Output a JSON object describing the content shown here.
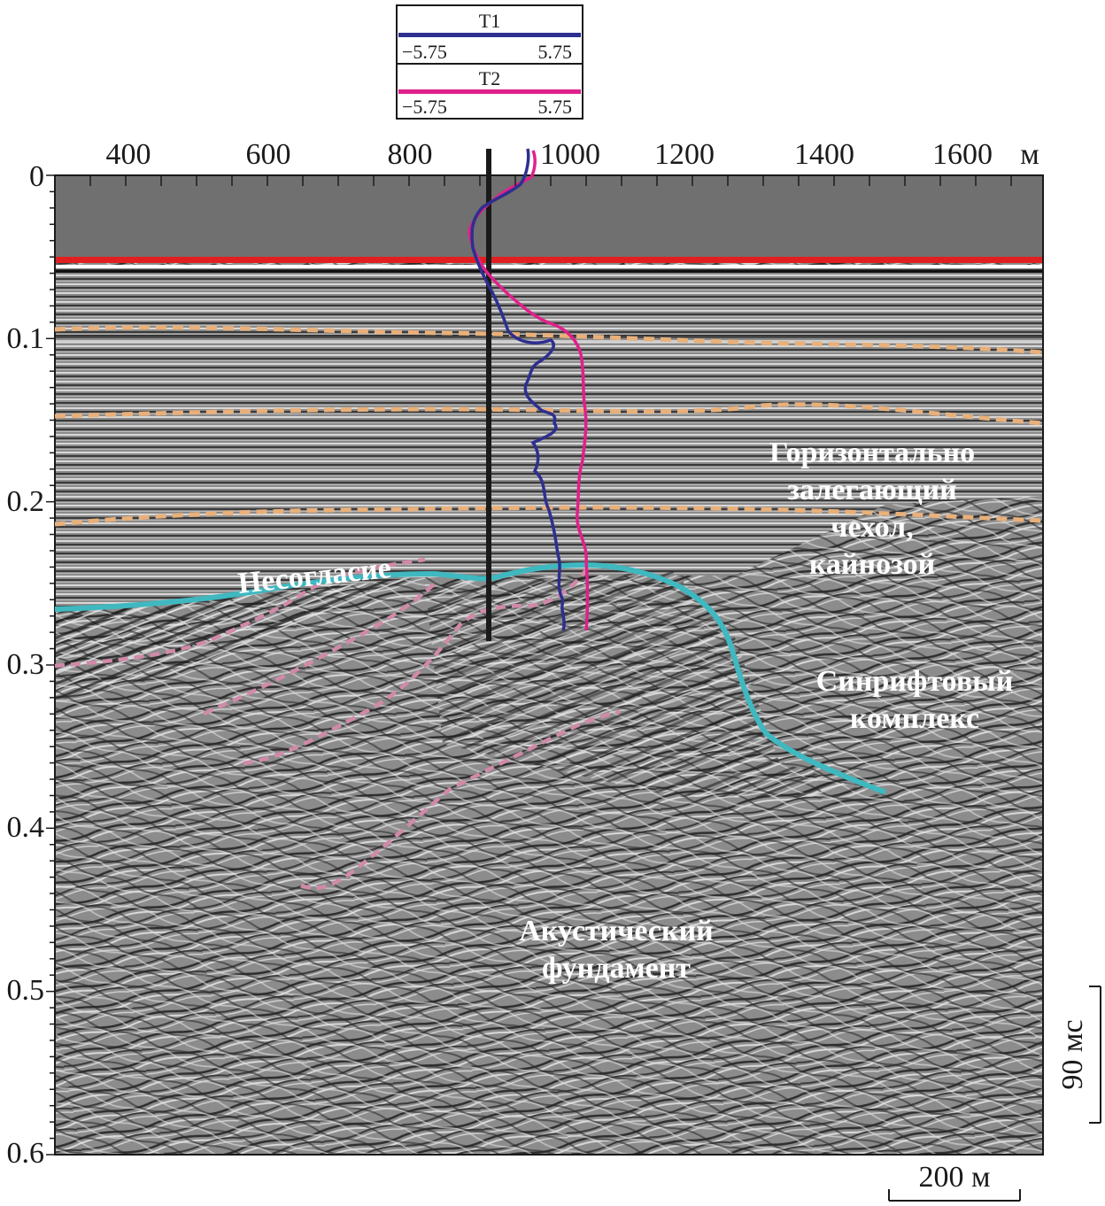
{
  "legend": {
    "entries": [
      {
        "name": "T1",
        "min": "−5.75",
        "max": "5.75",
        "color": "#2e2f8f"
      },
      {
        "name": "T2",
        "min": "−5.75",
        "max": "5.75",
        "color": "#e0208a"
      }
    ]
  },
  "axes": {
    "x_unit": "м",
    "x_ticks": [
      "400",
      "600",
      "800",
      "1000",
      "1200",
      "1400",
      "1600"
    ],
    "y_ticks": [
      "0",
      "0.1",
      "0.2",
      "0.3",
      "0.4",
      "0.5",
      "0.6"
    ]
  },
  "annotations": {
    "unconformity": "Несогласие",
    "cover_line1": "Горизонтально",
    "cover_line2": "залегающий",
    "cover_line3": "чехол,",
    "cover_line4": "кайнозой",
    "synrift_line1": "Синрифтовый",
    "synrift_line2": "комплекс",
    "basement_line1": "Акустический",
    "basement_line2": "фундамент"
  },
  "scale_bars": {
    "vertical": "90 мс",
    "horizontal": "200 м"
  },
  "colors": {
    "water": "#707070",
    "seafloor": "#e02020",
    "unconformity": "#3fb8c0",
    "horizon": "#e8b07a",
    "synrift_horizon": "#d08aa8",
    "well": "#1a1a1a"
  }
}
